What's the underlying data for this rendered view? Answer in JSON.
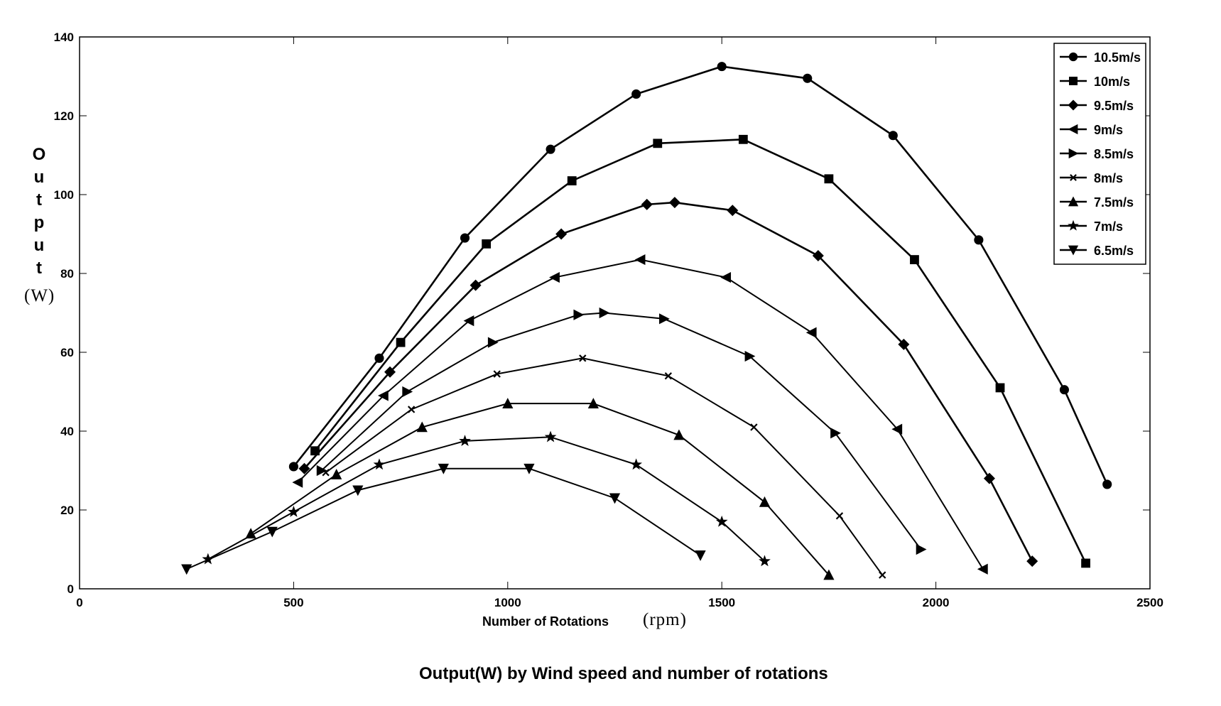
{
  "chart_data": {
    "type": "line",
    "title": "Output(W) by Wind speed and number of rotations",
    "xlabel": "Number of Rotations",
    "xlabel_unit": "(rpm)",
    "ylabel": "Output",
    "ylabel_unit": "(W)",
    "xlim": [
      0,
      2500
    ],
    "ylim": [
      0,
      140
    ],
    "xticks": [
      0,
      500,
      1000,
      1500,
      2000,
      2500
    ],
    "yticks": [
      0,
      20,
      40,
      60,
      80,
      100,
      120,
      140
    ],
    "grid": false,
    "legend_position": "top-right",
    "line_color": "#000000",
    "series": [
      {
        "name": "10.5m/s",
        "marker": "circle",
        "x": [
          500,
          700,
          900,
          1100,
          1300,
          1500,
          1700,
          1900,
          2100,
          2300,
          2400
        ],
        "y": [
          31,
          58.5,
          89,
          111.5,
          125.5,
          132.5,
          129.5,
          115,
          88.5,
          50.5,
          26.5
        ]
      },
      {
        "name": "10m/s",
        "marker": "square",
        "x": [
          550,
          750,
          950,
          1150,
          1350,
          1550,
          1750,
          1950,
          2150,
          2350
        ],
        "y": [
          35,
          62.5,
          87.5,
          103.5,
          113,
          114,
          104,
          83.5,
          51,
          6.5
        ]
      },
      {
        "name": "9.5m/s",
        "marker": "diamond",
        "x": [
          525,
          725,
          925,
          1125,
          1325,
          1390,
          1525,
          1725,
          1925,
          2125,
          2225
        ],
        "y": [
          30.5,
          55,
          77,
          90,
          97.5,
          98,
          96,
          84.5,
          62,
          28,
          7
        ]
      },
      {
        "name": "9m/s",
        "marker": "triangle-left",
        "x": [
          510,
          710,
          910,
          1110,
          1310,
          1510,
          1710,
          1910,
          2110
        ],
        "y": [
          27,
          49,
          68,
          79,
          83.5,
          79,
          65,
          40.5,
          5
        ]
      },
      {
        "name": "8.5m/s",
        "marker": "triangle-right",
        "x": [
          565,
          765,
          965,
          1165,
          1225,
          1365,
          1565,
          1765,
          1965
        ],
        "y": [
          30,
          50,
          62.5,
          69.5,
          70,
          68.5,
          59,
          39.5,
          10
        ]
      },
      {
        "name": "8m/s",
        "marker": "x",
        "x": [
          575,
          775,
          975,
          1175,
          1375,
          1575,
          1775,
          1875
        ],
        "y": [
          29.5,
          45.5,
          54.5,
          58.5,
          54,
          41,
          18.5,
          3.5
        ]
      },
      {
        "name": "7.5m/s",
        "marker": "triangle-up",
        "x": [
          400,
          600,
          800,
          1000,
          1200,
          1400,
          1600,
          1750
        ],
        "y": [
          14,
          29,
          41,
          47,
          47,
          39,
          22,
          3.5
        ]
      },
      {
        "name": "7m/s",
        "marker": "star",
        "x": [
          300,
          500,
          700,
          900,
          1100,
          1300,
          1500,
          1600
        ],
        "y": [
          7.5,
          19.5,
          31.5,
          37.5,
          38.5,
          31.5,
          17,
          7
        ]
      },
      {
        "name": "6.5m/s",
        "marker": "triangle-down",
        "x": [
          250,
          450,
          650,
          850,
          1050,
          1250,
          1450
        ],
        "y": [
          5,
          14.5,
          25,
          30.5,
          30.5,
          23,
          8.5
        ]
      }
    ]
  }
}
